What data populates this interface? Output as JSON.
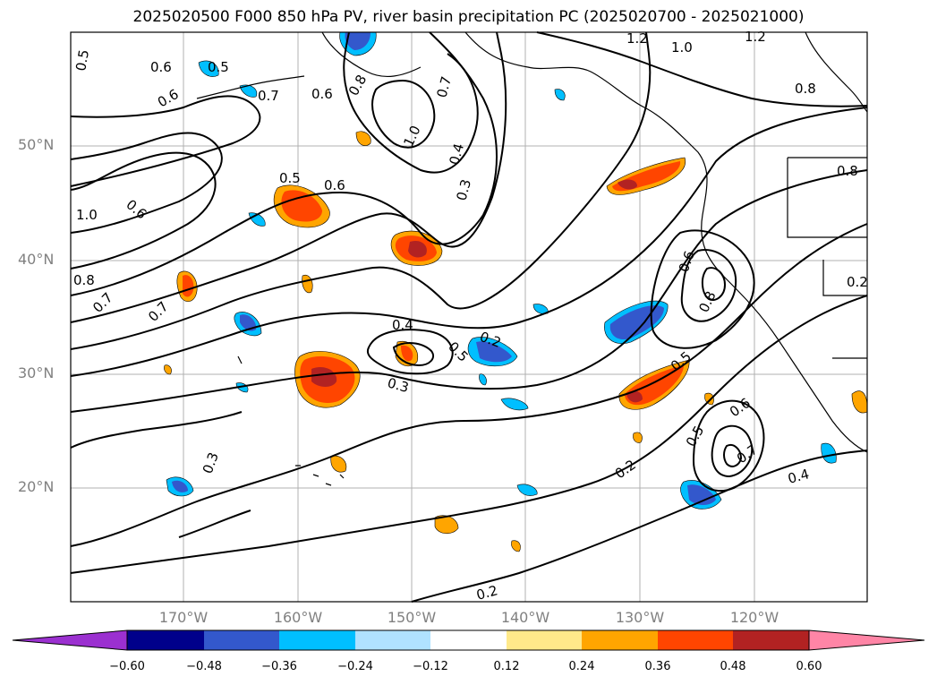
{
  "title": "2025020500 F000 850 hPa PV, river basin precipitation PC (2025020700 - 2025021000)",
  "lat_labels": [
    "50°N",
    "40°N",
    "30°N",
    "20°N"
  ],
  "lon_labels": [
    "170°W",
    "160°W",
    "150°W",
    "140°W",
    "130°W",
    "120°W"
  ],
  "colorbar": {
    "ticks": [
      "−0.60",
      "−0.48",
      "−0.36",
      "−0.24",
      "−0.12",
      "0.12",
      "0.24",
      "0.36",
      "0.48",
      "0.60"
    ],
    "colors": [
      "#9b30d0",
      "#00008b",
      "#3358cc",
      "#00bfff",
      "#b0e2ff",
      "#ffffff",
      "#ffe98a",
      "#ffa500",
      "#ff4500",
      "#b22222",
      "#ff85a6"
    ]
  },
  "contour_labels": [
    "0.5",
    "0.6",
    "0.5",
    "0.6",
    "0.7",
    "0.6",
    "0.8",
    "0.7",
    "1.0",
    "1.2",
    "1.0",
    "1.2",
    "0.8",
    "0.8",
    "0.6",
    "1.0",
    "0.4",
    "0.3",
    "0.5",
    "0.6",
    "0.8",
    "0.7",
    "0.7",
    "0.4",
    "0.5",
    "0.2",
    "0.3",
    "0.6",
    "0.8",
    "0.5",
    "0.6",
    "0.5",
    "0.7",
    "0.3",
    "0.2",
    "0.4",
    "0.2",
    "0.2"
  ],
  "precip_colors": {
    "blue_light": "#00bfff",
    "blue_mid": "#3358cc",
    "orange": "#ffa500",
    "red": "#ff4500",
    "darkred": "#b22222",
    "yellow": "#ffe98a"
  }
}
